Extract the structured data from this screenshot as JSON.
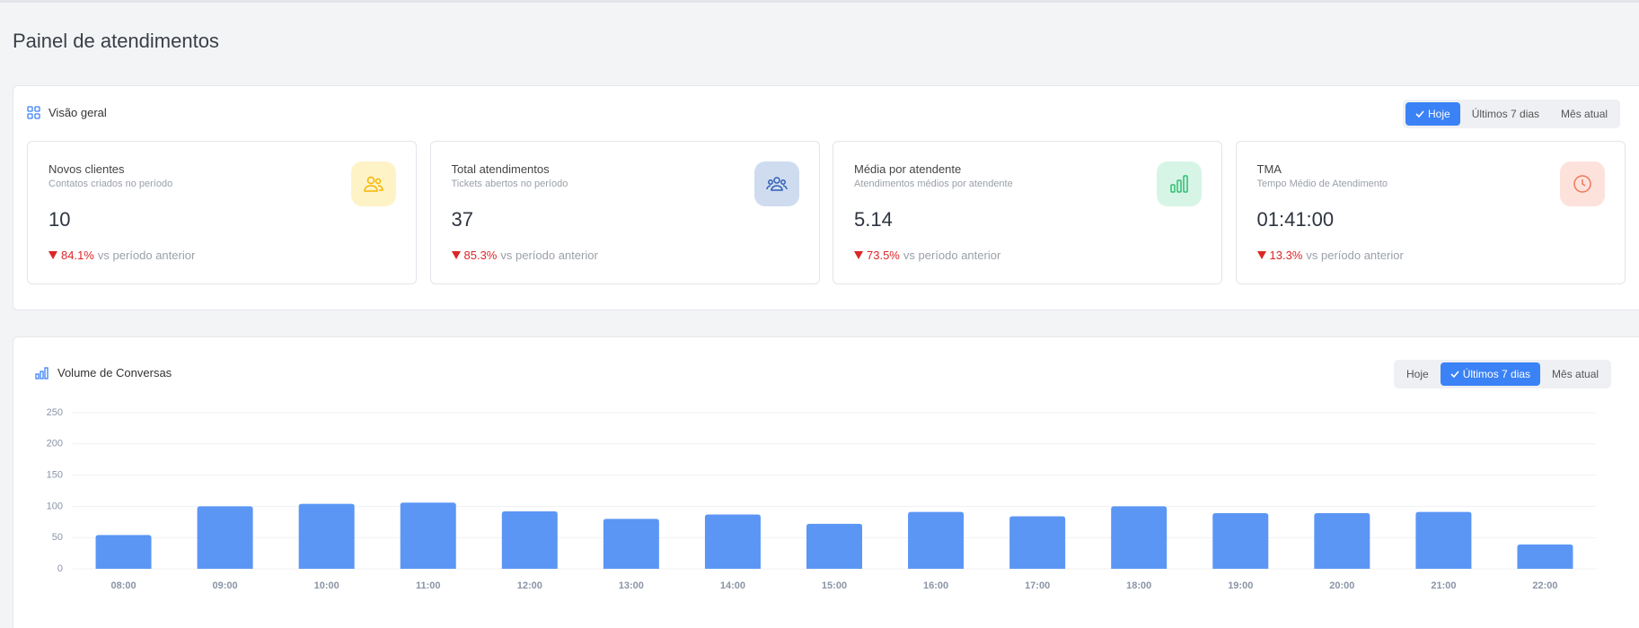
{
  "header": {
    "title": "Painel de atendimentos"
  },
  "overview": {
    "title": "Visão geral",
    "filters": [
      "Hoje",
      "Últimos 7 dias",
      "Mês atual"
    ],
    "active": 0,
    "cards": [
      {
        "title": "Novos clientes",
        "subtitle": "Contatos criados no período",
        "value": "10",
        "change": "84.1%",
        "comparison": "vs período anterior"
      },
      {
        "title": "Total atendimentos",
        "subtitle": "Tickets abertos no período",
        "value": "37",
        "change": "85.3%",
        "comparison": "vs período anterior"
      },
      {
        "title": "Média por atendente",
        "subtitle": "Atendimentos médios por atendente",
        "value": "5.14",
        "change": "73.5%",
        "comparison": "vs período anterior"
      },
      {
        "title": "TMA",
        "subtitle": "Tempo Médio de Atendimento",
        "value": "01:41:00",
        "change": "13.3%",
        "comparison": "vs período anterior"
      }
    ]
  },
  "chart_panel": {
    "filters": [
      "Hoje",
      "Últimos 7 dias",
      "Mês atual"
    ],
    "active": 1
  },
  "chart_data": {
    "type": "bar",
    "title": "Volume de Conversas",
    "categories": [
      "08:00",
      "09:00",
      "10:00",
      "11:00",
      "12:00",
      "13:00",
      "14:00",
      "15:00",
      "16:00",
      "17:00",
      "18:00",
      "19:00",
      "20:00",
      "21:00",
      "22:00"
    ],
    "values": [
      54,
      100,
      104,
      106,
      92,
      80,
      87,
      72,
      91,
      84,
      100,
      89,
      89,
      91,
      39
    ],
    "color": "#5b96f5",
    "ylim": [
      0,
      250
    ],
    "yticks": [
      0,
      50,
      100,
      150,
      200,
      250
    ],
    "grid": true
  }
}
